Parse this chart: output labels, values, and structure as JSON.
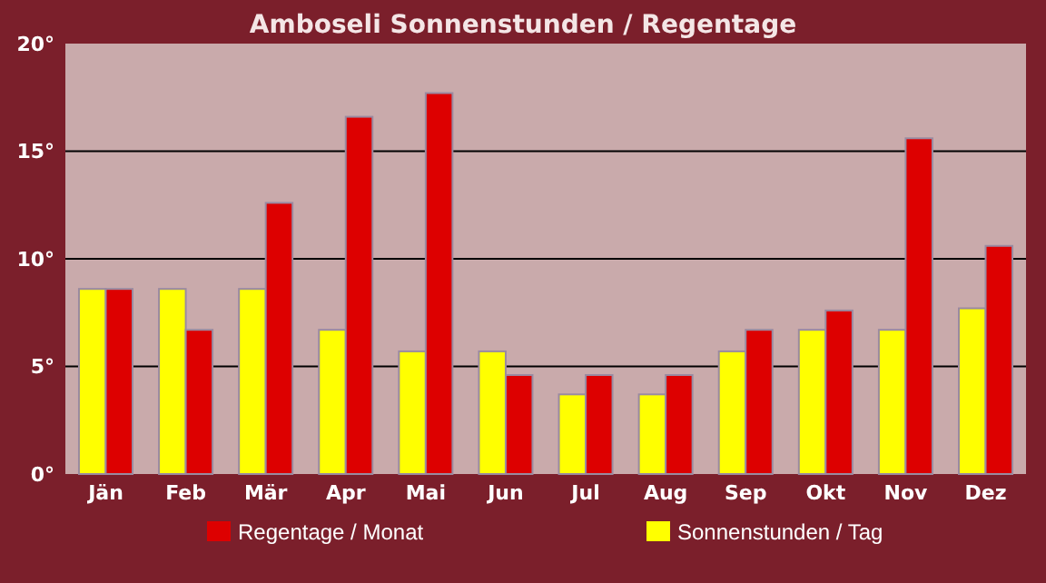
{
  "chart_data": {
    "type": "bar",
    "title": "Amboseli Sonnenstunden / Regentage",
    "categories": [
      "Jän",
      "Feb",
      "Mär",
      "Apr",
      "Mai",
      "Jun",
      "Jul",
      "Aug",
      "Sep",
      "Okt",
      "Nov",
      "Dez"
    ],
    "series": [
      {
        "name": "Sonnenstunden / Tag",
        "color": "#ffff00",
        "values": [
          8.6,
          8.6,
          8.6,
          6.7,
          5.7,
          5.7,
          3.7,
          3.7,
          5.7,
          6.7,
          6.7,
          7.7
        ]
      },
      {
        "name": "Regentage / Monat",
        "color": "#dd0000",
        "values": [
          8.6,
          6.7,
          12.6,
          16.6,
          17.7,
          4.6,
          4.6,
          4.6,
          6.7,
          7.6,
          15.6,
          10.6
        ]
      }
    ],
    "ylim": [
      0,
      20
    ],
    "yticks": [
      {
        "value": 0,
        "label": "0°"
      },
      {
        "value": 5,
        "label": "5°"
      },
      {
        "value": 10,
        "label": "10°"
      },
      {
        "value": 15,
        "label": "15°"
      },
      {
        "value": 20,
        "label": "20°"
      }
    ],
    "grid": "y",
    "legend": "bottom"
  }
}
